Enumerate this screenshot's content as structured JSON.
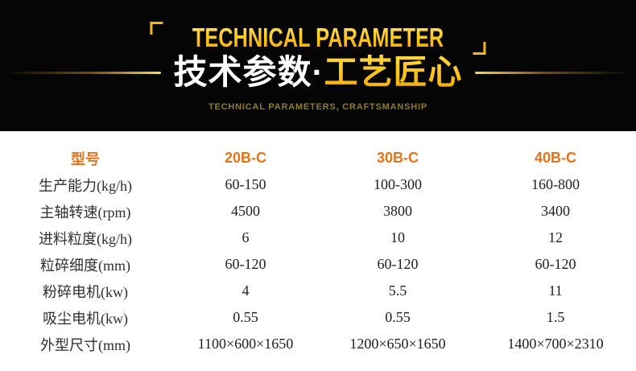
{
  "banner": {
    "title_en": "TECHNICAL PARAMETER",
    "title_cn_white": "技术参数·",
    "title_cn_gold": "工艺匠心",
    "subtitle_en": "TECHNICAL PARAMETERS, CRAFTSMANSHIP",
    "colors": {
      "background": "#050505",
      "gold_accent": "#fcc416",
      "subtitle_gold": "#8e7c31",
      "white": "#ffffff"
    }
  },
  "table": {
    "colors": {
      "model_orange": "#e2741b",
      "text_dark": "#1e1e1e"
    },
    "header": {
      "model_label": "型号",
      "columns": [
        "20B-C",
        "30B-C",
        "40B-C"
      ]
    },
    "rows": [
      {
        "label": "生产能力(kg/h)",
        "values": [
          "60-150",
          "100-300",
          "160-800"
        ]
      },
      {
        "label": "主轴转速(rpm)",
        "values": [
          "4500",
          "3800",
          "3400"
        ]
      },
      {
        "label": "进料粒度(kg/h)",
        "values": [
          "6",
          "10",
          "12"
        ]
      },
      {
        "label": "粒碎细度(mm)",
        "values": [
          "60-120",
          "60-120",
          "60-120"
        ]
      },
      {
        "label": "粉碎电机(kw)",
        "values": [
          "4",
          "5.5",
          "11"
        ]
      },
      {
        "label": "吸尘电机(kw)",
        "values": [
          "0.55",
          "0.55",
          "1.5"
        ]
      },
      {
        "label": "外型尺寸(mm)",
        "values": [
          "1100×600×1650",
          "1200×650×1650",
          "1400×700×2310"
        ]
      }
    ]
  }
}
